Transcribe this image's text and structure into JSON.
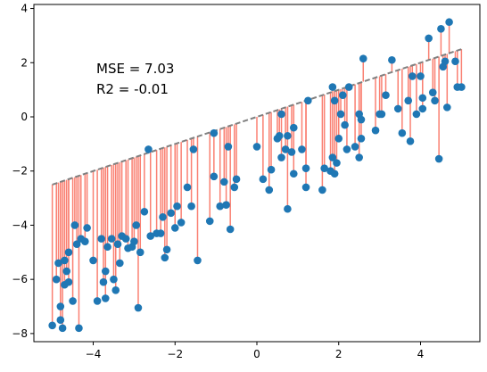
{
  "chart_data": {
    "type": "scatter",
    "title": "",
    "xlabel": "",
    "ylabel": "",
    "xlim": [
      -5.45,
      5.45
    ],
    "ylim": [
      -8.3,
      4.15
    ],
    "xticks": [
      -4,
      -2,
      0,
      2,
      4
    ],
    "yticks": [
      -8,
      -6,
      -4,
      -2,
      0,
      2,
      4
    ],
    "xtick_labels": [
      "−4",
      "−2",
      "0",
      "2",
      "4"
    ],
    "ytick_labels": [
      "−8",
      "−6",
      "−4",
      "−2",
      "0",
      "2",
      "4"
    ],
    "annotations": [
      "MSE = 7.03",
      "R2 = -0.01"
    ],
    "fit_line": {
      "slope": 0.5,
      "intercept": 0.0,
      "x_range": [
        -5,
        5
      ],
      "style": "dashed",
      "color": "#808080"
    },
    "residual_color": "#fa8072",
    "point_color": "#1f77b4",
    "points": [
      [
        -5.0,
        -7.7
      ],
      [
        -4.9,
        -6.0
      ],
      [
        -4.85,
        -5.4
      ],
      [
        -4.8,
        -7.0
      ],
      [
        -4.8,
        -7.5
      ],
      [
        -4.75,
        -7.8
      ],
      [
        -4.7,
        -6.2
      ],
      [
        -4.7,
        -5.3
      ],
      [
        -4.65,
        -5.7
      ],
      [
        -4.6,
        -6.1
      ],
      [
        -4.6,
        -5.0
      ],
      [
        -4.5,
        -6.8
      ],
      [
        -4.45,
        -4.0
      ],
      [
        -4.4,
        -4.7
      ],
      [
        -4.35,
        -7.8
      ],
      [
        -4.3,
        -4.5
      ],
      [
        -4.2,
        -4.6
      ],
      [
        -4.15,
        -4.1
      ],
      [
        -4.0,
        -5.3
      ],
      [
        -3.9,
        -6.8
      ],
      [
        -3.8,
        -4.5
      ],
      [
        -3.75,
        -6.1
      ],
      [
        -3.7,
        -5.7
      ],
      [
        -3.7,
        -6.7
      ],
      [
        -3.65,
        -4.8
      ],
      [
        -3.55,
        -4.5
      ],
      [
        -3.5,
        -6.0
      ],
      [
        -3.45,
        -6.4
      ],
      [
        -3.4,
        -4.7
      ],
      [
        -3.35,
        -5.4
      ],
      [
        -3.3,
        -4.4
      ],
      [
        -3.2,
        -4.5
      ],
      [
        -3.15,
        -4.85
      ],
      [
        -3.05,
        -4.8
      ],
      [
        -3.0,
        -4.6
      ],
      [
        -2.95,
        -4.0
      ],
      [
        -2.85,
        -5.0
      ],
      [
        -2.9,
        -7.05
      ],
      [
        -2.75,
        -3.5
      ],
      [
        -2.6,
        -4.4
      ],
      [
        -2.65,
        -1.2
      ],
      [
        -2.45,
        -4.3
      ],
      [
        -2.35,
        -4.3
      ],
      [
        -2.3,
        -3.7
      ],
      [
        -2.25,
        -5.2
      ],
      [
        -2.2,
        -4.9
      ],
      [
        -2.1,
        -3.55
      ],
      [
        -2.0,
        -4.1
      ],
      [
        -1.95,
        -3.3
      ],
      [
        -1.85,
        -3.9
      ],
      [
        -1.7,
        -2.6
      ],
      [
        -1.6,
        -3.3
      ],
      [
        -1.55,
        -1.2
      ],
      [
        -1.45,
        -5.3
      ],
      [
        -1.15,
        -3.85
      ],
      [
        -1.05,
        -0.6
      ],
      [
        -1.05,
        -2.2
      ],
      [
        -0.9,
        -3.3
      ],
      [
        -0.8,
        -2.4
      ],
      [
        -0.75,
        -3.25
      ],
      [
        -0.7,
        -1.1
      ],
      [
        -0.65,
        -4.15
      ],
      [
        -0.55,
        -2.6
      ],
      [
        -0.5,
        -2.3
      ],
      [
        0.0,
        -1.1
      ],
      [
        0.15,
        -2.3
      ],
      [
        0.3,
        -2.7
      ],
      [
        0.35,
        -1.95
      ],
      [
        0.5,
        -0.8
      ],
      [
        0.55,
        -0.7
      ],
      [
        0.6,
        -1.5
      ],
      [
        0.6,
        0.1
      ],
      [
        0.7,
        -1.2
      ],
      [
        0.75,
        -3.4
      ],
      [
        0.75,
        -0.7
      ],
      [
        0.85,
        -1.3
      ],
      [
        0.9,
        -2.1
      ],
      [
        0.9,
        -0.4
      ],
      [
        1.1,
        -1.2
      ],
      [
        1.2,
        -2.6
      ],
      [
        1.2,
        -1.9
      ],
      [
        1.25,
        0.6
      ],
      [
        1.6,
        -2.7
      ],
      [
        1.65,
        -1.9
      ],
      [
        1.8,
        -2.0
      ],
      [
        1.85,
        1.1
      ],
      [
        1.85,
        -1.5
      ],
      [
        1.9,
        0.6
      ],
      [
        1.9,
        -2.1
      ],
      [
        1.95,
        -1.7
      ],
      [
        2.0,
        -0.8
      ],
      [
        2.05,
        0.1
      ],
      [
        2.1,
        0.8
      ],
      [
        2.15,
        -0.3
      ],
      [
        2.2,
        -1.2
      ],
      [
        2.25,
        1.1
      ],
      [
        2.4,
        -1.1
      ],
      [
        2.5,
        0.1
      ],
      [
        2.55,
        -0.1
      ],
      [
        2.55,
        -0.8
      ],
      [
        2.6,
        2.15
      ],
      [
        2.5,
        -1.5
      ],
      [
        2.9,
        -0.5
      ],
      [
        3.0,
        0.1
      ],
      [
        3.05,
        0.1
      ],
      [
        3.15,
        0.8
      ],
      [
        3.3,
        2.1
      ],
      [
        3.45,
        0.3
      ],
      [
        3.55,
        -0.6
      ],
      [
        3.7,
        0.6
      ],
      [
        3.75,
        -0.9
      ],
      [
        3.8,
        1.5
      ],
      [
        3.9,
        0.1
      ],
      [
        4.0,
        1.5
      ],
      [
        4.05,
        0.3
      ],
      [
        4.05,
        0.7
      ],
      [
        4.2,
        2.9
      ],
      [
        4.3,
        0.9
      ],
      [
        4.35,
        0.6
      ],
      [
        4.45,
        -1.55
      ],
      [
        4.5,
        3.25
      ],
      [
        4.55,
        1.85
      ],
      [
        4.6,
        2.05
      ],
      [
        4.65,
        0.35
      ],
      [
        4.7,
        3.5
      ],
      [
        4.85,
        2.05
      ],
      [
        4.9,
        1.1
      ],
      [
        5.0,
        1.1
      ]
    ]
  }
}
